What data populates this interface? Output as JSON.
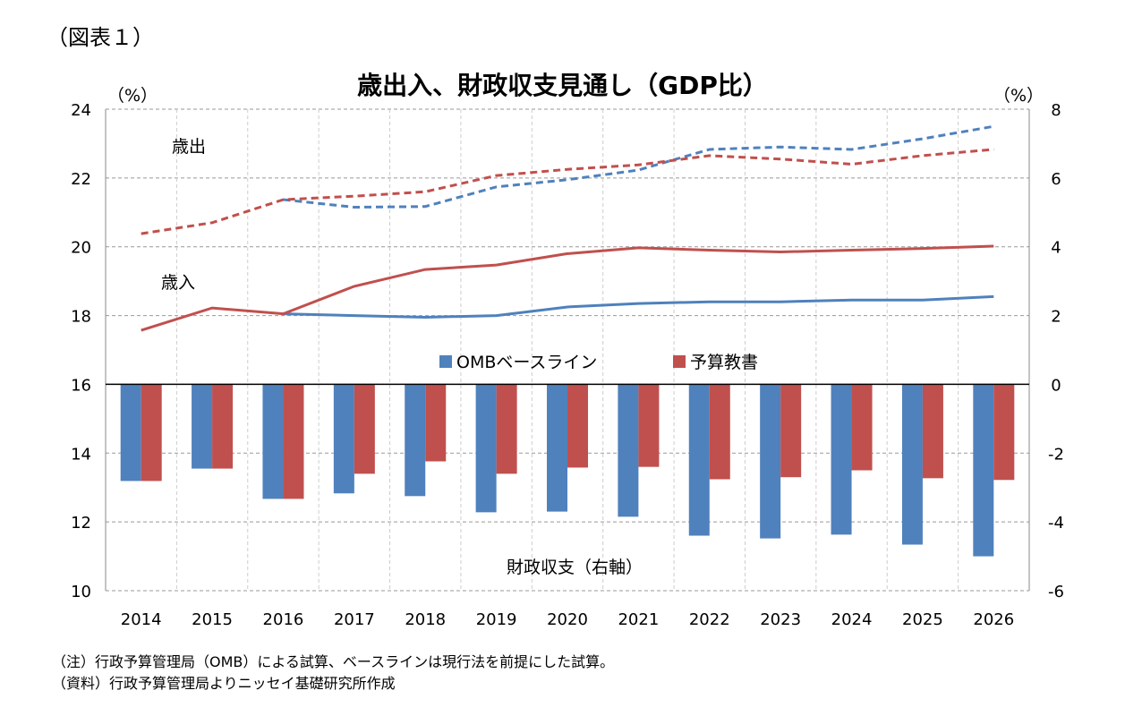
{
  "figure_label": "（図表１）",
  "notes": [
    "（注）行政予算管理局（OMB）による試算、ベースラインは現行法を前提にした試算。",
    "（資料）行政予算管理局よりニッセイ基礎研究所作成"
  ],
  "colors": {
    "omb": "#4f81bd",
    "budget": "#c0504d"
  },
  "chart_data": {
    "type": "bar+line",
    "title": "歳出入、財政収支見通し（GDP比）",
    "ylabel_left": "（%）",
    "ylabel_right": "（%）",
    "ylim_left": [
      10,
      24
    ],
    "ylim_right": [
      -6,
      8
    ],
    "yticks_left": [
      10,
      12,
      14,
      16,
      18,
      20,
      22,
      24
    ],
    "yticks_right": [
      -6,
      -4,
      -2,
      0,
      2,
      4,
      6,
      8
    ],
    "grid": true,
    "legend_position": "center",
    "categories": [
      "2014",
      "2015",
      "2016",
      "2017",
      "2018",
      "2019",
      "2020",
      "2021",
      "2022",
      "2023",
      "2024",
      "2025",
      "2026"
    ],
    "annotations": {
      "outlays": "歳出",
      "revenues": "歳入",
      "balance": "財政収支（右軸）"
    },
    "legend": [
      "OMBベースライン",
      "予算教書"
    ],
    "lines": [
      {
        "series": "OMBベースライン",
        "kind": "歳出",
        "style": "dashed",
        "axis": "left",
        "values": [
          null,
          null,
          21.37,
          21.15,
          21.17,
          21.74,
          21.95,
          22.23,
          22.83,
          22.9,
          22.83,
          23.14,
          23.5
        ]
      },
      {
        "series": "予算教書",
        "kind": "歳出",
        "style": "dashed",
        "axis": "left",
        "values": [
          20.38,
          20.7,
          21.37,
          21.47,
          21.6,
          22.07,
          22.25,
          22.38,
          22.65,
          22.55,
          22.4,
          22.65,
          22.83
        ]
      },
      {
        "series": "OMBベースライン",
        "kind": "歳入",
        "style": "solid",
        "axis": "left",
        "values": [
          null,
          null,
          18.05,
          18.0,
          17.95,
          18.0,
          18.25,
          18.35,
          18.4,
          18.4,
          18.45,
          18.45,
          18.55
        ]
      },
      {
        "series": "予算教書",
        "kind": "歳入",
        "style": "solid",
        "axis": "left",
        "values": [
          17.57,
          18.22,
          18.05,
          18.85,
          19.34,
          19.47,
          19.8,
          19.97,
          19.9,
          19.85,
          19.9,
          19.95,
          20.02
        ]
      }
    ],
    "bars": [
      {
        "series": "OMBベースライン",
        "axis": "right",
        "values": [
          -2.81,
          -2.45,
          -3.33,
          -3.17,
          -3.25,
          -3.72,
          -3.7,
          -3.85,
          -4.4,
          -4.48,
          -4.37,
          -4.66,
          -5.0
        ]
      },
      {
        "series": "予算教書",
        "axis": "right",
        "values": [
          -2.81,
          -2.45,
          -3.33,
          -2.6,
          -2.24,
          -2.6,
          -2.42,
          -2.4,
          -2.76,
          -2.7,
          -2.5,
          -2.73,
          -2.78
        ]
      }
    ]
  }
}
